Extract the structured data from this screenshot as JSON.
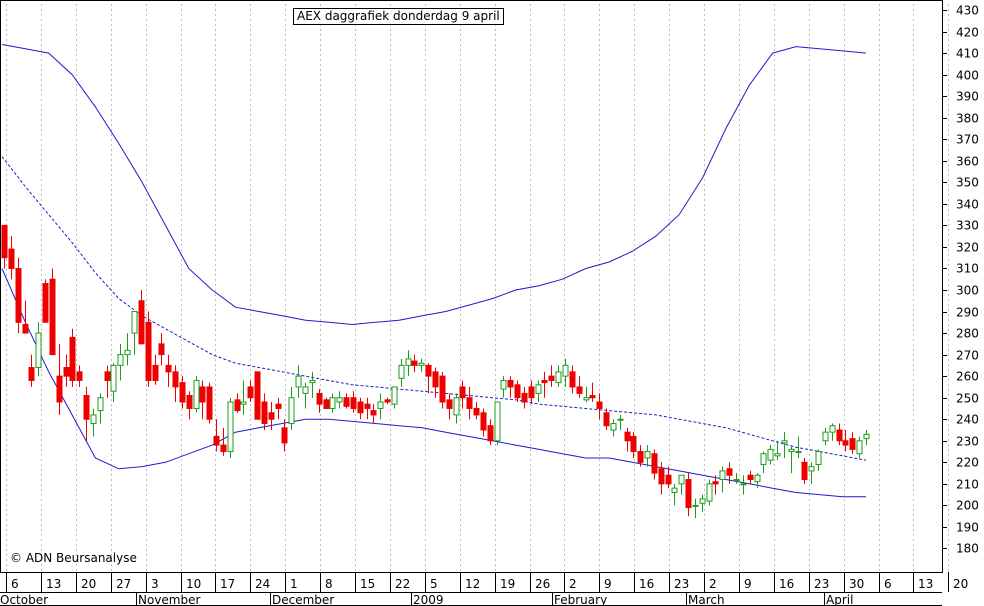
{
  "chart_data": {
    "type": "candlestick",
    "title": "AEX daggrafiek donderdag 9 april",
    "copyright": "© ADN Beursanalyse",
    "y_axis": {
      "position": "right",
      "ylim": [
        170,
        430
      ],
      "ticks": [
        180,
        190,
        200,
        210,
        220,
        230,
        240,
        250,
        260,
        270,
        280,
        290,
        300,
        310,
        320,
        330,
        340,
        350,
        360,
        370,
        380,
        390,
        400,
        410,
        420,
        430
      ]
    },
    "x_day_labels": [
      "6",
      "13",
      "20",
      "27",
      "3",
      "10",
      "17",
      "24",
      "1",
      "8",
      "15",
      "22",
      "5",
      "12",
      "19",
      "26",
      "2",
      "9",
      "16",
      "23",
      "2",
      "9",
      "16",
      "23",
      "30",
      "6",
      "13",
      "20"
    ],
    "x_month_labels": [
      "October",
      "November",
      "December",
      "2009",
      "February",
      "March",
      "April"
    ],
    "colors": {
      "bullish": "#1a9e1a",
      "bearish": "#ee0000",
      "bands": "#1c1ccc",
      "grid": "#bdbdbd"
    },
    "candles": [
      [
        330,
        330,
        310,
        315
      ],
      [
        319,
        325,
        305,
        310
      ],
      [
        310,
        315,
        280,
        285
      ],
      [
        284,
        295,
        280,
        280
      ],
      [
        264,
        270,
        255,
        258
      ],
      [
        264,
        285,
        260,
        280
      ],
      [
        303,
        305,
        285,
        285
      ],
      [
        305,
        310,
        270,
        270
      ],
      [
        260,
        275,
        242,
        248
      ],
      [
        264,
        270,
        255,
        260
      ],
      [
        278,
        282,
        255,
        258
      ],
      [
        262,
        265,
        255,
        258
      ],
      [
        251,
        255,
        230,
        240
      ],
      [
        238,
        245,
        232,
        242
      ],
      [
        244,
        252,
        238,
        250
      ],
      [
        262,
        265,
        250,
        258
      ],
      [
        253,
        266,
        248,
        265
      ],
      [
        265,
        275,
        258,
        270
      ],
      [
        270,
        280,
        265,
        272
      ],
      [
        280,
        290,
        270,
        290
      ],
      [
        295,
        300,
        275,
        275
      ],
      [
        285,
        290,
        255,
        258
      ],
      [
        265,
        270,
        256,
        258
      ],
      [
        275,
        280,
        265,
        270
      ],
      [
        265,
        270,
        255,
        262
      ],
      [
        262,
        265,
        248,
        255
      ],
      [
        257,
        260,
        245,
        248
      ],
      [
        251,
        253,
        240,
        245
      ],
      [
        245,
        260,
        243,
        258
      ],
      [
        255,
        258,
        240,
        248
      ],
      [
        255,
        257,
        238,
        240
      ],
      [
        232,
        240,
        225,
        228
      ],
      [
        228,
        236,
        223,
        225
      ],
      [
        225,
        250,
        222,
        248
      ],
      [
        249,
        252,
        243,
        244
      ],
      [
        247,
        258,
        242,
        248
      ],
      [
        255,
        258,
        248,
        250
      ],
      [
        262,
        262,
        240,
        240
      ],
      [
        248,
        252,
        235,
        238
      ],
      [
        243,
        248,
        235,
        240
      ],
      [
        247,
        250,
        240,
        245
      ],
      [
        236,
        240,
        225,
        229
      ],
      [
        238,
        255,
        235,
        250
      ],
      [
        255,
        265,
        250,
        260
      ],
      [
        252,
        257,
        245,
        255
      ],
      [
        257,
        262,
        250,
        258
      ],
      [
        252,
        254,
        243,
        247
      ],
      [
        249,
        250,
        245,
        245
      ],
      [
        245,
        252,
        243,
        250
      ],
      [
        248,
        253,
        245,
        250
      ],
      [
        250,
        252,
        245,
        246
      ],
      [
        250,
        253,
        243,
        245
      ],
      [
        248,
        250,
        240,
        243
      ],
      [
        247,
        250,
        240,
        245
      ],
      [
        244,
        247,
        238,
        242
      ],
      [
        245,
        252,
        240,
        248
      ],
      [
        249,
        250,
        247,
        248
      ],
      [
        247,
        255,
        245,
        255
      ],
      [
        259,
        268,
        255,
        265
      ],
      [
        265,
        272,
        260,
        268
      ],
      [
        267,
        270,
        262,
        265
      ],
      [
        265,
        268,
        262,
        266
      ],
      [
        265,
        266,
        252,
        260
      ],
      [
        262,
        264,
        250,
        255
      ],
      [
        260,
        262,
        245,
        248
      ],
      [
        249,
        252,
        240,
        245
      ],
      [
        242,
        252,
        238,
        250
      ],
      [
        255,
        258,
        245,
        250
      ],
      [
        250,
        255,
        240,
        245
      ],
      [
        245,
        248,
        240,
        242
      ],
      [
        243,
        245,
        232,
        235
      ],
      [
        237,
        240,
        228,
        230
      ],
      [
        230,
        248,
        228,
        248
      ],
      [
        254,
        260,
        250,
        258
      ],
      [
        258,
        260,
        250,
        255
      ],
      [
        256,
        258,
        248,
        250
      ],
      [
        252,
        255,
        245,
        248
      ],
      [
        255,
        258,
        247,
        250
      ],
      [
        252,
        258,
        248,
        256
      ],
      [
        258,
        262,
        250,
        257
      ],
      [
        260,
        265,
        255,
        258
      ],
      [
        257,
        265,
        255,
        262
      ],
      [
        260,
        268,
        255,
        265
      ],
      [
        262,
        265,
        252,
        255
      ],
      [
        255,
        260,
        250,
        252
      ],
      [
        249,
        255,
        248,
        250
      ],
      [
        251,
        257,
        248,
        250
      ],
      [
        248,
        252,
        240,
        245
      ],
      [
        243,
        245,
        235,
        237
      ],
      [
        235,
        240,
        232,
        238
      ],
      [
        240,
        242,
        235,
        240
      ],
      [
        234,
        236,
        225,
        230
      ],
      [
        232,
        234,
        222,
        225
      ],
      [
        225,
        228,
        218,
        220
      ],
      [
        222,
        228,
        218,
        225
      ],
      [
        224,
        226,
        212,
        215
      ],
      [
        217,
        220,
        205,
        210
      ],
      [
        214,
        218,
        208,
        210
      ],
      [
        206,
        210,
        200,
        208
      ],
      [
        210,
        214,
        205,
        214
      ],
      [
        212,
        215,
        195,
        199
      ],
      [
        200,
        203,
        194,
        200
      ],
      [
        201,
        205,
        197,
        203
      ],
      [
        202,
        212,
        200,
        210
      ],
      [
        211,
        214,
        205,
        210
      ],
      [
        212,
        218,
        206,
        216
      ],
      [
        217,
        220,
        210,
        214
      ],
      [
        212,
        215,
        210,
        212
      ],
      [
        210,
        214,
        205,
        210
      ],
      [
        214,
        216,
        210,
        212
      ],
      [
        211,
        215,
        208,
        214
      ],
      [
        219,
        225,
        215,
        224
      ],
      [
        221,
        228,
        219,
        226
      ],
      [
        223,
        230,
        221,
        224
      ],
      [
        229,
        234,
        222,
        230
      ],
      [
        225,
        228,
        215,
        226
      ],
      [
        225,
        232,
        222,
        225
      ],
      [
        220,
        222,
        210,
        212
      ],
      [
        216,
        220,
        210,
        218
      ],
      [
        219,
        226,
        216,
        225
      ],
      [
        230,
        236,
        228,
        234
      ],
      [
        234,
        238,
        230,
        237
      ],
      [
        235,
        238,
        228,
        230
      ],
      [
        230,
        235,
        225,
        228
      ],
      [
        231,
        234,
        224,
        226
      ],
      [
        224,
        232,
        222,
        230
      ],
      [
        231,
        235,
        228,
        233
      ]
    ],
    "upper_band": [
      414,
      412,
      410,
      400,
      385,
      368,
      350,
      330,
      310,
      300,
      292,
      290,
      288,
      286,
      285,
      284,
      285,
      286,
      288,
      290,
      293,
      296,
      300,
      302,
      305,
      310,
      313,
      318,
      325,
      335,
      352,
      375,
      395,
      410,
      413,
      412,
      411,
      410
    ],
    "middle_band": [
      362,
      348,
      335,
      322,
      308,
      296,
      288,
      282,
      276,
      270,
      266,
      264,
      262,
      260,
      258,
      256,
      255,
      254,
      253,
      252,
      251,
      250,
      249,
      247,
      246,
      245,
      244,
      243,
      242,
      240,
      238,
      236,
      233,
      230,
      227,
      225,
      223,
      221
    ],
    "lower_band": [
      310,
      285,
      262,
      242,
      222,
      217,
      218,
      220,
      224,
      228,
      234,
      236,
      238,
      240,
      240,
      239,
      238,
      237,
      236,
      234,
      232,
      230,
      228,
      226,
      224,
      222,
      222,
      220,
      218,
      216,
      214,
      212,
      210,
      208,
      206,
      205,
      204,
      204
    ]
  }
}
